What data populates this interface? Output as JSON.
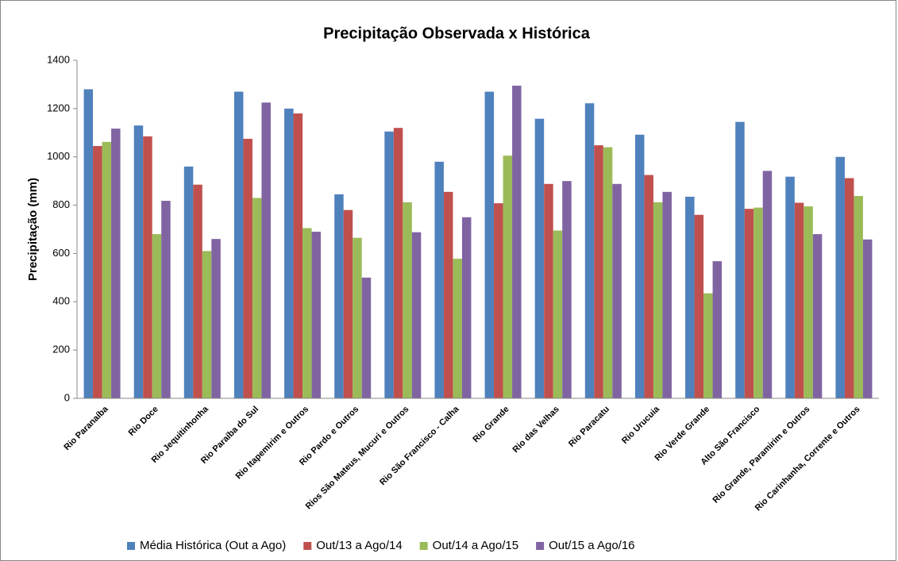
{
  "chart_data": {
    "type": "bar",
    "title": "Precipitação Observada x Histórica",
    "y_label": "Precipitação (mm)",
    "categories": [
      "Rio Paranaíba",
      "Rio Doce",
      "Rio Jequitinhonha",
      "Rio Paraíba do Sul",
      "Rio Itapemirim e Outros",
      "Rio Pardo e Outros",
      "Rios São Mateus, Mucuri e Outros",
      "Rio São Francisco - Calha",
      "Rio Grande",
      "Rio das Velhas",
      "Rio Paracatu",
      "Rio Urucuia",
      "Rio Verde Grande",
      "Alto São Francisco",
      "Rio Grande, Paramirim e Outros",
      "Rio Carinhanha, Corrente e Outros"
    ],
    "series": [
      {
        "name": "Média Histórica (Out a Ago)",
        "color": "#4f81bd",
        "values": [
          1280,
          1130,
          960,
          1270,
          1200,
          845,
          1105,
          980,
          1270,
          1158,
          1222,
          1092,
          835,
          1145,
          918,
          1000
        ]
      },
      {
        "name": "Out/13 a Ago/14",
        "color": "#c0504d",
        "values": [
          1045,
          1085,
          885,
          1075,
          1180,
          780,
          1120,
          855,
          808,
          888,
          1048,
          925,
          760,
          785,
          810,
          912
        ]
      },
      {
        "name": "Out/14 a Ago/15",
        "color": "#9bbb59",
        "values": [
          1062,
          680,
          610,
          830,
          705,
          665,
          812,
          578,
          1005,
          695,
          1040,
          812,
          435,
          790,
          795,
          838
        ]
      },
      {
        "name": "Out/15 a Ago/16",
        "color": "#8064a2",
        "values": [
          1117,
          818,
          660,
          1225,
          690,
          500,
          688,
          750,
          1295,
          900,
          888,
          855,
          568,
          942,
          680,
          658
        ]
      }
    ],
    "ylim": [
      0,
      1400
    ],
    "yticks": [
      0,
      200,
      400,
      600,
      800,
      1000,
      1200,
      1400
    ],
    "grid": false,
    "legend": "bottom"
  }
}
